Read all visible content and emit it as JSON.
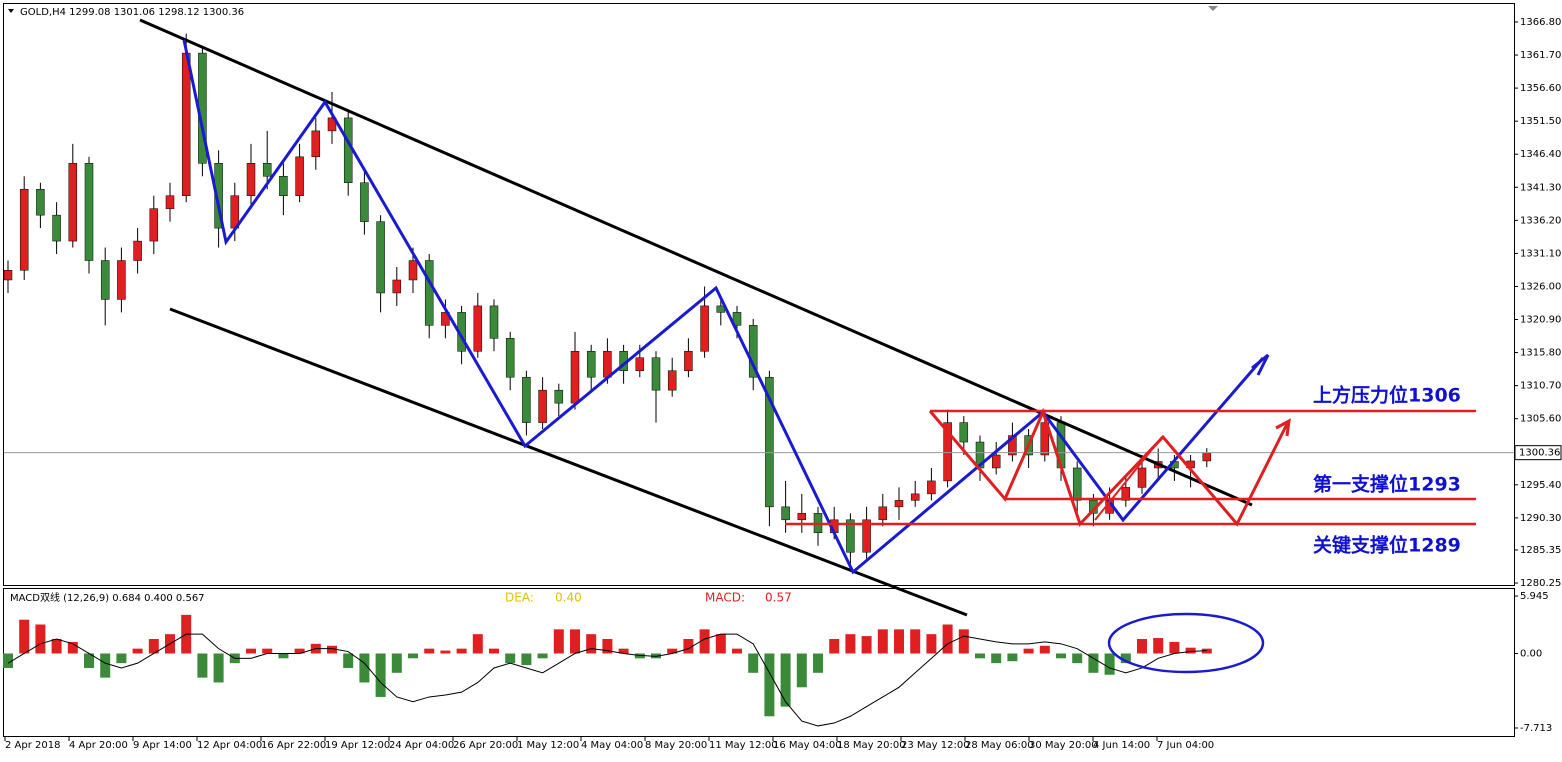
{
  "chart_data": {
    "type": "candlestick",
    "symbol": "GOLD,H4",
    "ylim": [
      1279.79,
      1369.42
    ],
    "yticks": [
      {
        "value": 1366.8,
        "label": "1366.80"
      },
      {
        "value": 1361.7,
        "label": "1361.70"
      },
      {
        "value": 1356.6,
        "label": "1356.60"
      },
      {
        "value": 1351.5,
        "label": "1351.50"
      },
      {
        "value": 1346.4,
        "label": "1346.40"
      },
      {
        "value": 1341.3,
        "label": "1341.30"
      },
      {
        "value": 1336.2,
        "label": "1336.20"
      },
      {
        "value": 1331.1,
        "label": "1331.10"
      },
      {
        "value": 1326,
        "label": "1326.00"
      },
      {
        "value": 1320.9,
        "label": "1320.90"
      },
      {
        "value": 1315.8,
        "label": "1315.80"
      },
      {
        "value": 1310.7,
        "label": "1310.70"
      },
      {
        "value": 1305.6,
        "label": "1305.60"
      },
      {
        "value": 1295.4,
        "label": "1295.40"
      },
      {
        "value": 1290.3,
        "label": "1290.30"
      },
      {
        "value": 1285.35,
        "label": "1285.35"
      },
      {
        "value": 1280.25,
        "label": "1280.25"
      }
    ],
    "x_labels": [
      "2 Apr 2018",
      "4 Apr 20:00",
      "9 Apr 14:00",
      "12 Apr 04:00",
      "16 Apr 22:00",
      "19 Apr 12:00",
      "24 Apr 04:00",
      "26 Apr 20:00",
      "1 May 12:00",
      "4 May 04:00",
      "8 May 20:00",
      "11 May 12:00",
      "16 May 04:00",
      "18 May 20:00",
      "23 May 12:00",
      "28 May 06:00",
      "30 May 20:00",
      "4 Jun 14:00",
      "7 Jun 04:00"
    ],
    "up_color": "#e02020",
    "down_color": "#3a8a3a",
    "candles": [
      [
        1327,
        1330,
        1325,
        1328.5
      ],
      [
        1328.5,
        1343,
        1327,
        1341
      ],
      [
        1341,
        1342,
        1335,
        1337
      ],
      [
        1337,
        1339,
        1331,
        1333
      ],
      [
        1333,
        1348,
        1332,
        1345
      ],
      [
        1345,
        1346,
        1328,
        1330
      ],
      [
        1330,
        1332,
        1320,
        1324
      ],
      [
        1324,
        1332,
        1322,
        1330
      ],
      [
        1330,
        1335,
        1328,
        1333
      ],
      [
        1333,
        1340,
        1331,
        1338
      ],
      [
        1338,
        1342,
        1336,
        1340
      ],
      [
        1340,
        1365,
        1339,
        1362
      ],
      [
        1362,
        1363,
        1343,
        1345
      ],
      [
        1345,
        1347,
        1332,
        1335
      ],
      [
        1335,
        1342,
        1333,
        1340
      ],
      [
        1340,
        1348,
        1338,
        1345
      ],
      [
        1345,
        1350,
        1341,
        1343
      ],
      [
        1343,
        1345,
        1337,
        1340
      ],
      [
        1340,
        1348,
        1339,
        1346
      ],
      [
        1346,
        1352,
        1344,
        1350
      ],
      [
        1350,
        1356,
        1348,
        1352
      ],
      [
        1352,
        1353,
        1340,
        1342
      ],
      [
        1342,
        1344,
        1334,
        1336
      ],
      [
        1336,
        1337,
        1322,
        1325
      ],
      [
        1325,
        1329,
        1323,
        1327
      ],
      [
        1327,
        1332,
        1325,
        1330
      ],
      [
        1330,
        1331,
        1318,
        1320
      ],
      [
        1320,
        1324,
        1318,
        1322
      ],
      [
        1322,
        1323,
        1314,
        1316
      ],
      [
        1316,
        1325,
        1315,
        1323
      ],
      [
        1323,
        1324,
        1316,
        1318
      ],
      [
        1318,
        1319,
        1310,
        1312
      ],
      [
        1312,
        1313,
        1303,
        1305
      ],
      [
        1305,
        1312,
        1304,
        1310
      ],
      [
        1310,
        1311,
        1306,
        1308
      ],
      [
        1308,
        1319,
        1307,
        1316
      ],
      [
        1316,
        1317,
        1310,
        1312
      ],
      [
        1312,
        1318,
        1311,
        1316
      ],
      [
        1316,
        1317,
        1311,
        1313
      ],
      [
        1313,
        1317,
        1312,
        1315
      ],
      [
        1315,
        1316,
        1305,
        1310
      ],
      [
        1310,
        1315,
        1309,
        1313
      ],
      [
        1313,
        1318,
        1312,
        1316
      ],
      [
        1316,
        1326,
        1315,
        1323
      ],
      [
        1323,
        1324,
        1320,
        1322
      ],
      [
        1322,
        1323,
        1318,
        1320
      ],
      [
        1320,
        1321,
        1310,
        1312
      ],
      [
        1312,
        1313,
        1289,
        1292
      ],
      [
        1292,
        1296,
        1288,
        1290
      ],
      [
        1290,
        1294,
        1288,
        1291
      ],
      [
        1291,
        1292,
        1286,
        1288
      ],
      [
        1288,
        1292,
        1287,
        1290
      ],
      [
        1290,
        1291,
        1282,
        1285
      ],
      [
        1285,
        1292,
        1284,
        1290
      ],
      [
        1290,
        1294,
        1289,
        1292
      ],
      [
        1292,
        1295,
        1290,
        1293
      ],
      [
        1293,
        1296,
        1292,
        1294
      ],
      [
        1294,
        1298,
        1293,
        1296
      ],
      [
        1296,
        1307,
        1295,
        1305
      ],
      [
        1305,
        1306,
        1300,
        1302
      ],
      [
        1302,
        1303,
        1296,
        1298
      ],
      [
        1298,
        1302,
        1297,
        1300
      ],
      [
        1300,
        1305,
        1299,
        1303
      ],
      [
        1303,
        1304,
        1298,
        1300
      ],
      [
        1300,
        1307,
        1299,
        1305
      ],
      [
        1305,
        1306,
        1296,
        1298
      ],
      [
        1298,
        1299,
        1291,
        1293
      ],
      [
        1293,
        1294,
        1289,
        1291
      ],
      [
        1291,
        1295,
        1290,
        1293
      ],
      [
        1293,
        1297,
        1292,
        1295
      ],
      [
        1295,
        1300,
        1294,
        1298
      ],
      [
        1298,
        1301,
        1296,
        1299
      ],
      [
        1299,
        1300,
        1296,
        1298
      ],
      [
        1298,
        1300,
        1295,
        1299.08
      ],
      [
        1299.08,
        1301.06,
        1298.12,
        1300.36
      ]
    ],
    "annotations": [
      "上方压力位1306",
      "第一支撑位1293",
      "关键支撑位1289"
    ],
    "macd": {
      "title": "MACD双线 (12,26,9) 0.684 0.400 0.567",
      "dea_label": "DEA:",
      "dea_value": "0.40",
      "macd_label": "MACD:",
      "macd_value": "0.57",
      "ylim": [
        -8.75,
        6.78
      ],
      "yticks": [
        5.945,
        {
          "value": 0,
          "label": "0.00"
        },
        -7.713
      ],
      "histogram": [
        -1.5,
        3.5,
        3,
        1.5,
        1.2,
        -1.5,
        -2.5,
        -1,
        0.5,
        1.5,
        2,
        4,
        -2.5,
        -3,
        -1,
        0.5,
        0.5,
        -0.5,
        0.5,
        1,
        0.8,
        -1.5,
        -3,
        -4.5,
        -2,
        -0.5,
        0.5,
        0.3,
        0.5,
        2,
        0.5,
        -1,
        -1.2,
        -0.5,
        2.5,
        2.5,
        2,
        1.5,
        0.5,
        -0.5,
        -0.5,
        0.5,
        1.5,
        2.5,
        2,
        0.5,
        -2,
        -6.5,
        -5.5,
        -3.5,
        -2,
        1.5,
        2,
        1.8,
        2.5,
        2.5,
        2.5,
        2,
        3,
        2.5,
        -0.5,
        -1,
        -0.8,
        0.5,
        0.8,
        -0.5,
        -1,
        -2,
        -2.2,
        -1,
        1.5,
        1.6,
        1.2,
        0.6,
        0.5
      ],
      "signal": [
        -1,
        0,
        1,
        1.5,
        1,
        0,
        -1,
        -1.5,
        -1,
        0,
        1,
        2,
        2,
        0.5,
        -0.5,
        -0.5,
        0,
        0,
        0,
        0.5,
        0.5,
        0.2,
        -1,
        -3,
        -4.5,
        -5,
        -4.5,
        -4.3,
        -4,
        -3,
        -1.5,
        -1,
        -1.5,
        -2,
        -1,
        0,
        0.5,
        0.3,
        0,
        -0.2,
        -0.3,
        0,
        0.5,
        1.5,
        2,
        2,
        1,
        -2,
        -5,
        -7,
        -7.5,
        -7.2,
        -6.5,
        -5.5,
        -4.5,
        -3.5,
        -2,
        -0.5,
        1,
        1.8,
        1.5,
        1.2,
        1,
        1,
        1.2,
        1,
        0.5,
        -0.5,
        -1.5,
        -2,
        -1.5,
        -0.5,
        0,
        0.2,
        0.3
      ]
    }
  }
}
